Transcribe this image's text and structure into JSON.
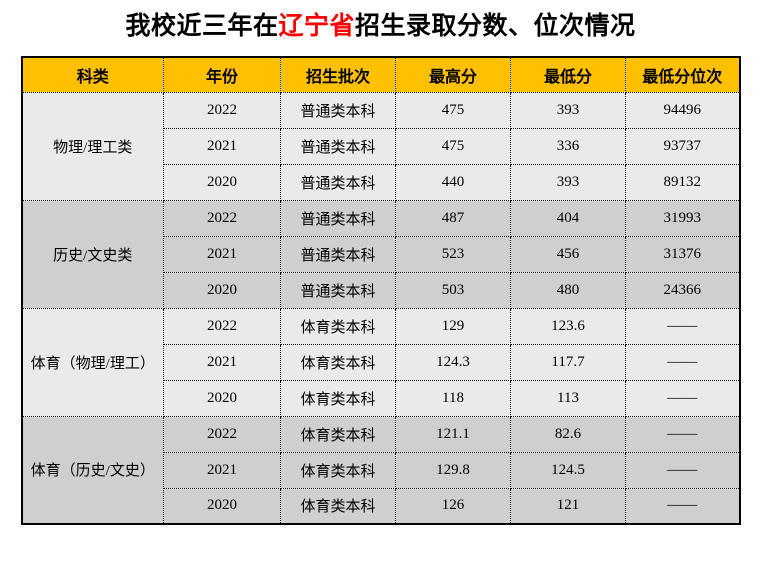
{
  "title": {
    "prefix": "我校近三年在",
    "highlight": "辽宁省",
    "suffix": "招生录取分数、位次情况"
  },
  "colors": {
    "header_bg": "#FFC000",
    "shade_light": "#EAEAEA",
    "shade_dark": "#D0CECE",
    "highlight": "#FF0000",
    "border": "#000000",
    "page_bg": "#FFFFFF"
  },
  "table": {
    "headers": [
      "科类",
      "年份",
      "招生批次",
      "最高分",
      "最低分",
      "最低分位次"
    ],
    "groups": [
      {
        "category": "物理/理工类",
        "rows": [
          {
            "year": "2022",
            "batch": "普通类本科",
            "max": "475",
            "min": "393",
            "rank": "94496"
          },
          {
            "year": "2021",
            "batch": "普通类本科",
            "max": "475",
            "min": "336",
            "rank": "93737"
          },
          {
            "year": "2020",
            "batch": "普通类本科",
            "max": "440",
            "min": "393",
            "rank": "89132"
          }
        ]
      },
      {
        "category": "历史/文史类",
        "rows": [
          {
            "year": "2022",
            "batch": "普通类本科",
            "max": "487",
            "min": "404",
            "rank": "31993"
          },
          {
            "year": "2021",
            "batch": "普通类本科",
            "max": "523",
            "min": "456",
            "rank": "31376"
          },
          {
            "year": "2020",
            "batch": "普通类本科",
            "max": "503",
            "min": "480",
            "rank": "24366"
          }
        ]
      },
      {
        "category": "体育（物理/理工）",
        "rows": [
          {
            "year": "2022",
            "batch": "体育类本科",
            "max": "129",
            "min": "123.6",
            "rank": "——"
          },
          {
            "year": "2021",
            "batch": "体育类本科",
            "max": "124.3",
            "min": "117.7",
            "rank": "——"
          },
          {
            "year": "2020",
            "batch": "体育类本科",
            "max": "118",
            "min": "113",
            "rank": "——"
          }
        ]
      },
      {
        "category": "体育（历史/文史）",
        "rows": [
          {
            "year": "2022",
            "batch": "体育类本科",
            "max": "121.1",
            "min": "82.6",
            "rank": "——"
          },
          {
            "year": "2021",
            "batch": "体育类本科",
            "max": "129.8",
            "min": "124.5",
            "rank": "——"
          },
          {
            "year": "2020",
            "batch": "体育类本科",
            "max": "126",
            "min": "121",
            "rank": "——"
          }
        ]
      }
    ]
  }
}
